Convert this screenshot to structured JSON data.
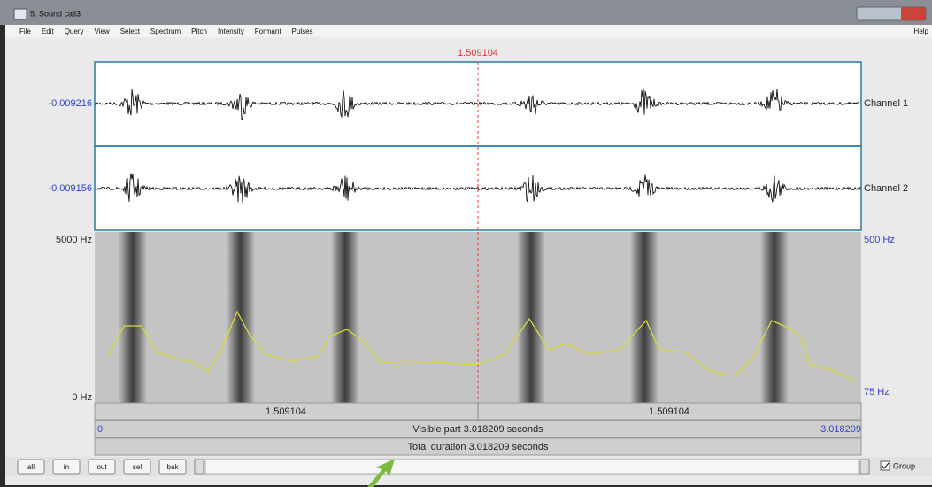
{
  "window": {
    "title": "5. Sound call3",
    "help": "Help"
  },
  "menu": [
    "File",
    "Edit",
    "Query",
    "View",
    "Select",
    "Spectrum",
    "Pitch",
    "Intensity",
    "Formant",
    "Pulses"
  ],
  "cursor": {
    "time": "1.509104"
  },
  "channels": [
    {
      "label": "Channel 1",
      "value": "-0.009216"
    },
    {
      "label": "Channel 2",
      "value": "-0.009156"
    }
  ],
  "spectrogram": {
    "top": "5000 Hz",
    "bottom": "0 Hz",
    "pitch_top": "500 Hz",
    "pitch_bottom": "75 Hz"
  },
  "time_bar": {
    "left": "1.509104",
    "right": "1.509104"
  },
  "visible": {
    "start": "0",
    "label": "Visible part 3.018209 seconds",
    "end": "3.018209"
  },
  "total": "Total duration 3.018209 seconds",
  "buttons": [
    "all",
    "in",
    "out",
    "sel",
    "bak"
  ],
  "group": "Group"
}
